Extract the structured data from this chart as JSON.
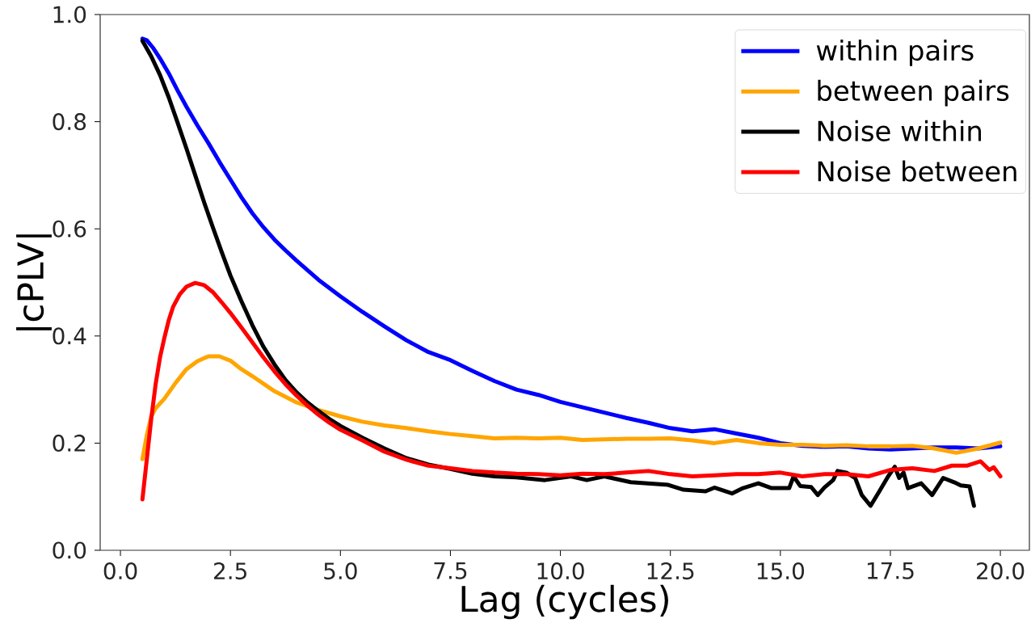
{
  "chart_data": {
    "type": "line",
    "xlabel": "Lag (cycles)",
    "ylabel": "|cPLV|",
    "xlim": [
      -0.46,
      20.66
    ],
    "ylim": [
      0,
      1
    ],
    "xticks": [
      {
        "value": 0,
        "label": "0.0"
      },
      2.5,
      {
        "value": 5,
        "label": "5.0"
      },
      7.5,
      {
        "value": 10,
        "label": "10.0"
      },
      12.5,
      {
        "value": 15,
        "label": "15.0"
      },
      17.5,
      {
        "value": 20,
        "label": "20.0"
      }
    ],
    "yticks": [
      {
        "value": 0,
        "label": "0.0"
      },
      0.2,
      0.4,
      0.6,
      0.8,
      {
        "value": 1,
        "label": "1.0"
      }
    ],
    "legend": "top right",
    "line_style": "solid",
    "series": [
      {
        "name": "within pairs",
        "color": "#0000ff",
        "x": [
          0.5,
          0.6,
          0.75,
          0.9,
          1.1,
          1.3,
          1.5,
          1.75,
          2.0,
          2.25,
          2.5,
          2.75,
          3.0,
          3.25,
          3.5,
          3.75,
          4.0,
          4.5,
          5.0,
          5.5,
          6.0,
          6.5,
          7.0,
          7.5,
          8.0,
          8.5,
          9.0,
          9.5,
          10.0,
          10.5,
          11.0,
          11.5,
          12.0,
          12.5,
          13.0,
          13.5,
          14.0,
          14.5,
          15.0,
          15.5,
          16.0,
          16.5,
          17.0,
          17.5,
          18.0,
          18.5,
          19.0,
          19.5,
          20.0
        ],
        "values": [
          0.955,
          0.952,
          0.937,
          0.918,
          0.89,
          0.858,
          0.828,
          0.793,
          0.76,
          0.725,
          0.692,
          0.659,
          0.629,
          0.603,
          0.58,
          0.56,
          0.541,
          0.505,
          0.474,
          0.445,
          0.418,
          0.392,
          0.37,
          0.355,
          0.335,
          0.316,
          0.3,
          0.29,
          0.277,
          0.267,
          0.257,
          0.247,
          0.238,
          0.228,
          0.222,
          0.226,
          0.218,
          0.21,
          0.2,
          0.195,
          0.193,
          0.194,
          0.19,
          0.188,
          0.19,
          0.192,
          0.192,
          0.19,
          0.194
        ]
      },
      {
        "name": "between pairs",
        "color": "#ffa500",
        "x": [
          0.5,
          0.6,
          0.7,
          0.8,
          1.0,
          1.25,
          1.5,
          1.75,
          2.0,
          2.25,
          2.5,
          2.75,
          3.0,
          3.5,
          4.0,
          4.5,
          5.0,
          5.5,
          6.0,
          6.5,
          7.0,
          7.5,
          8.0,
          8.5,
          9.0,
          9.5,
          10.0,
          10.5,
          11.0,
          11.5,
          12.0,
          12.5,
          13.0,
          13.5,
          14.0,
          14.5,
          15.0,
          15.5,
          16.0,
          16.5,
          17.0,
          17.5,
          18.0,
          18.5,
          19.0,
          19.5,
          20.0
        ],
        "values": [
          0.17,
          0.215,
          0.25,
          0.265,
          0.283,
          0.312,
          0.338,
          0.353,
          0.362,
          0.362,
          0.354,
          0.338,
          0.325,
          0.297,
          0.276,
          0.262,
          0.25,
          0.24,
          0.233,
          0.228,
          0.222,
          0.217,
          0.213,
          0.209,
          0.21,
          0.209,
          0.21,
          0.206,
          0.207,
          0.208,
          0.208,
          0.209,
          0.205,
          0.2,
          0.206,
          0.2,
          0.197,
          0.197,
          0.195,
          0.196,
          0.194,
          0.194,
          0.195,
          0.19,
          0.182,
          0.19,
          0.201
        ]
      },
      {
        "name": "Noise within",
        "color": "#000000",
        "x": [
          0.5,
          0.7,
          0.9,
          1.1,
          1.3,
          1.5,
          1.7,
          1.9,
          2.1,
          2.3,
          2.5,
          2.75,
          3.0,
          3.25,
          3.5,
          3.75,
          4.0,
          4.25,
          4.5,
          4.75,
          5.0,
          5.5,
          6.0,
          6.5,
          7.0,
          7.5,
          8.0,
          8.5,
          9.0,
          9.65,
          10.24,
          10.6,
          11.0,
          11.6,
          12.45,
          12.8,
          13.3,
          13.5,
          13.9,
          14.15,
          14.5,
          14.8,
          15.2,
          15.3,
          15.45,
          15.7,
          15.85,
          16.0,
          16.2,
          16.3,
          16.5,
          16.7,
          16.85,
          17.05,
          17.25,
          17.45,
          17.6,
          17.7,
          17.8,
          17.9,
          18.2,
          18.45,
          18.7,
          18.95,
          19.1,
          19.3,
          19.4
        ],
        "values": [
          0.951,
          0.922,
          0.887,
          0.845,
          0.798,
          0.75,
          0.7,
          0.65,
          0.603,
          0.557,
          0.513,
          0.465,
          0.42,
          0.38,
          0.347,
          0.318,
          0.295,
          0.276,
          0.26,
          0.245,
          0.232,
          0.21,
          0.19,
          0.172,
          0.16,
          0.152,
          0.143,
          0.138,
          0.136,
          0.131,
          0.138,
          0.131,
          0.138,
          0.127,
          0.122,
          0.113,
          0.11,
          0.117,
          0.106,
          0.116,
          0.125,
          0.116,
          0.116,
          0.138,
          0.12,
          0.118,
          0.103,
          0.117,
          0.131,
          0.148,
          0.145,
          0.135,
          0.103,
          0.083,
          0.11,
          0.138,
          0.156,
          0.135,
          0.145,
          0.116,
          0.125,
          0.103,
          0.135,
          0.127,
          0.121,
          0.119,
          0.083
        ]
      },
      {
        "name": "Noise between",
        "color": "#ff0000",
        "x": [
          0.5,
          0.6,
          0.7,
          0.8,
          0.9,
          1.0,
          1.1,
          1.2,
          1.35,
          1.5,
          1.7,
          1.9,
          2.1,
          2.3,
          2.5,
          2.75,
          3.0,
          3.25,
          3.5,
          3.75,
          4.0,
          4.25,
          4.5,
          4.75,
          5.0,
          5.5,
          6.0,
          6.5,
          7.0,
          7.5,
          8.0,
          8.5,
          9.0,
          9.5,
          10.0,
          10.5,
          11.0,
          11.5,
          12.0,
          12.5,
          13.0,
          13.5,
          14.0,
          14.5,
          15.0,
          15.5,
          16.0,
          16.5,
          17.0,
          17.5,
          18.0,
          18.5,
          18.9,
          19.25,
          19.55,
          19.75,
          19.85,
          20.0
        ],
        "values": [
          0.095,
          0.17,
          0.245,
          0.31,
          0.36,
          0.397,
          0.43,
          0.455,
          0.478,
          0.492,
          0.499,
          0.495,
          0.482,
          0.463,
          0.443,
          0.416,
          0.388,
          0.36,
          0.334,
          0.31,
          0.289,
          0.27,
          0.253,
          0.238,
          0.225,
          0.205,
          0.184,
          0.169,
          0.158,
          0.153,
          0.148,
          0.145,
          0.143,
          0.142,
          0.14,
          0.143,
          0.142,
          0.145,
          0.148,
          0.142,
          0.138,
          0.14,
          0.142,
          0.142,
          0.145,
          0.138,
          0.142,
          0.142,
          0.138,
          0.15,
          0.153,
          0.148,
          0.158,
          0.158,
          0.166,
          0.15,
          0.155,
          0.138
        ]
      }
    ]
  }
}
